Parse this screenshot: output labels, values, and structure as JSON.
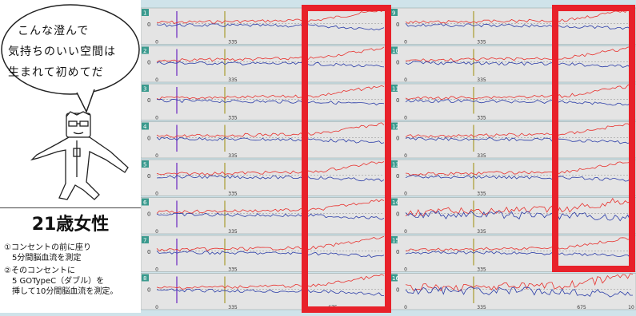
{
  "caption": {
    "speech_lines": [
      "こんな澄んで",
      "気持ちのいい空間は",
      "生まれて初めてだ"
    ],
    "title": "21歳女性",
    "notes": [
      "①コンセントの前に座り",
      "　5分間脳血流を測定",
      "②そのコンセントに",
      "　5 GOTypeC（ダブル）を",
      "　挿して10分間脳血流を測定。"
    ]
  },
  "chart_data": {
    "type": "line",
    "panels": [
      {
        "id": "1",
        "x_ticks": [
          "0",
          "335"
        ]
      },
      {
        "id": "2",
        "x_ticks": [
          "0",
          "335"
        ]
      },
      {
        "id": "3",
        "x_ticks": [
          "0",
          "335"
        ]
      },
      {
        "id": "4",
        "x_ticks": [
          "0",
          "335"
        ]
      },
      {
        "id": "5",
        "x_ticks": [
          "0",
          "335"
        ]
      },
      {
        "id": "6",
        "x_ticks": [
          "0",
          "335"
        ]
      },
      {
        "id": "7",
        "x_ticks": [
          "0",
          "335"
        ]
      },
      {
        "id": "8",
        "x_ticks": [
          "0",
          "335",
          "675"
        ]
      },
      {
        "id": "9",
        "x_ticks": [
          "0",
          "335"
        ]
      },
      {
        "id": "10",
        "x_ticks": [
          "0",
          "335"
        ]
      },
      {
        "id": "11",
        "x_ticks": [
          "0",
          "335"
        ]
      },
      {
        "id": "12",
        "x_ticks": [
          "0",
          "335"
        ]
      },
      {
        "id": "13",
        "x_ticks": [
          "0",
          "335"
        ]
      },
      {
        "id": "14",
        "x_ticks": [
          "0",
          "335"
        ]
      },
      {
        "id": "15",
        "x_ticks": [
          "0",
          "335"
        ]
      },
      {
        "id": "16",
        "x_ticks": [
          "0",
          "335",
          "675",
          "10"
        ]
      }
    ],
    "y_label": "0",
    "series_colors": {
      "red": "#e8302c",
      "blue": "#2b3da8"
    },
    "marker_colors": {
      "purple": "#7b3fc4",
      "olive": "#a89a2e"
    },
    "highlight_color": "#e8212a"
  }
}
